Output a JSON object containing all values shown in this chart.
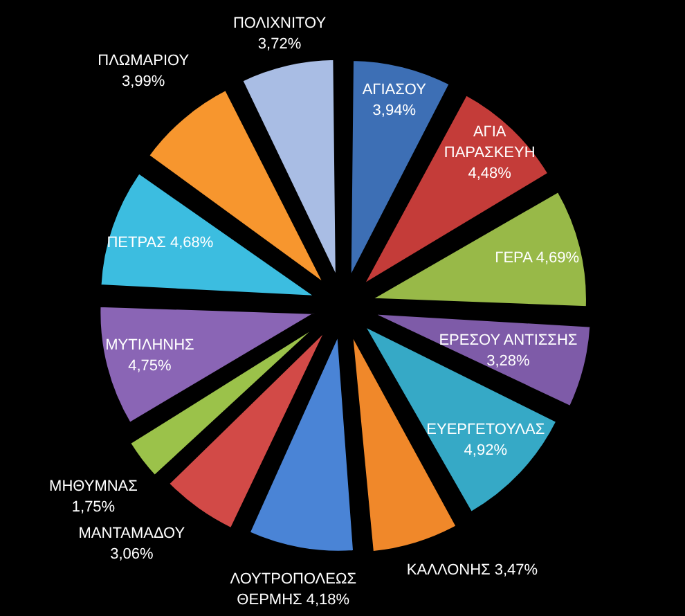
{
  "chart_data": {
    "type": "pie",
    "categories": [
      "ΑΓΙΑΣΟΥ",
      "ΑΓΙΑ ΠΑΡΑΣΚΕΥΗ",
      "ΓΕΡΑ",
      "ΕΡΕΣΟΥ ΑΝΤΙΣΣΗΣ",
      "ΕΥΕΡΓΕΤΟΥΛΑΣ",
      "ΚΑΛΛΟΝΗΣ",
      "ΛΟΥΤΡΟΠΟΛΕΩΣ ΘΕΡΜΗΣ",
      "ΜΑΝΤΑΜΑΔΟΥ",
      "ΜΗΘΥΜΝΑΣ",
      "ΜΥΤΙΛΗΝΗΣ",
      "ΠΕΤΡΑΣ",
      "ΠΛΩΜΑΡΙΟΥ",
      "ΠΟΛΙΧΝΙΤΟΥ"
    ],
    "values": [
      3.94,
      4.48,
      4.69,
      3.28,
      4.92,
      3.47,
      4.18,
      3.06,
      1.75,
      4.75,
      4.68,
      3.99,
      3.72
    ],
    "value_labels": [
      "3,94%",
      "4,48%",
      "4,69%",
      "3,28%",
      "4,92%",
      "3,47%",
      "4,18%",
      "3,06%",
      "1,75%",
      "4,75%",
      "4,68%",
      "3,99%",
      "3,72%"
    ],
    "colors": [
      "#3d6fb5",
      "#c43c39",
      "#98b948",
      "#7e5ba8",
      "#36a9c6",
      "#f0882a",
      "#4a84d6",
      "#d24a47",
      "#9bc24a",
      "#8a65b5",
      "#3cbde0",
      "#f7962e",
      "#a9bde4"
    ],
    "legend": false
  }
}
